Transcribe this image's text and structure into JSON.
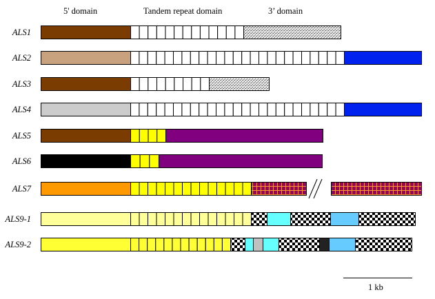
{
  "domain_headers": [
    "5' domain",
    "Tandem repeat domain",
    "3’ domain"
  ],
  "genes": [
    {
      "name": "ALS1",
      "segments": [
        {
          "kind": "solid",
          "color": "#7a3c00"
        },
        {
          "kind": "repeats",
          "count": 13,
          "color": "#ffffff"
        },
        {
          "kind": "stipple"
        }
      ]
    },
    {
      "name": "ALS2",
      "segments": [
        {
          "kind": "solid",
          "color": "#c8a27e"
        },
        {
          "kind": "repeats",
          "count": 25,
          "color": "#ffffff"
        },
        {
          "kind": "solid",
          "color": "#0022ee"
        }
      ]
    },
    {
      "name": "ALS3",
      "segments": [
        {
          "kind": "solid",
          "color": "#7a3c00"
        },
        {
          "kind": "repeats",
          "count": 9,
          "color": "#ffffff"
        },
        {
          "kind": "stipple"
        }
      ]
    },
    {
      "name": "ALS4",
      "segments": [
        {
          "kind": "solid",
          "color": "#cccccc"
        },
        {
          "kind": "repeats",
          "count": 25,
          "color": "#ffffff"
        },
        {
          "kind": "solid",
          "color": "#0022ee"
        }
      ]
    },
    {
      "name": "ALS5",
      "segments": [
        {
          "kind": "solid",
          "color": "#7a3c00"
        },
        {
          "kind": "repeats",
          "count": 4,
          "color": "#ffff00"
        },
        {
          "kind": "solid",
          "color": "#800080"
        }
      ]
    },
    {
      "name": "ALS6",
      "segments": [
        {
          "kind": "solid",
          "color": "#000000"
        },
        {
          "kind": "repeats",
          "count": 3,
          "color": "#ffff00"
        },
        {
          "kind": "solid",
          "color": "#800080"
        }
      ]
    },
    {
      "name": "ALS7",
      "segments": [
        {
          "kind": "solid",
          "color": "#ff9900"
        },
        {
          "kind": "repeats",
          "count": 14,
          "color": "#ffff00"
        },
        {
          "kind": "grid"
        },
        {
          "kind": "break"
        },
        {
          "kind": "grid"
        }
      ]
    },
    {
      "name": "ALS9-1",
      "segments": [
        {
          "kind": "solid",
          "color": "#ffff99"
        },
        {
          "kind": "repeats",
          "count": 14,
          "color": "#ffff99"
        },
        {
          "kind": "checker"
        },
        {
          "kind": "solid",
          "color": "#66ffff"
        },
        {
          "kind": "checker"
        },
        {
          "kind": "solid",
          "color": "#66ccff"
        },
        {
          "kind": "checker"
        }
      ]
    },
    {
      "name": "ALS9-2",
      "segments": [
        {
          "kind": "solid",
          "color": "#ffff33"
        },
        {
          "kind": "repeats",
          "count": 12,
          "color": "#ffff33"
        },
        {
          "kind": "checker"
        },
        {
          "kind": "solid",
          "color": "#66ffff"
        },
        {
          "kind": "solid",
          "color": "#c0c0c0"
        },
        {
          "kind": "solid",
          "color": "#66ffff"
        },
        {
          "kind": "checker"
        },
        {
          "kind": "solid",
          "color": "#222222"
        },
        {
          "kind": "solid",
          "color": "#66ccff"
        },
        {
          "kind": "checker"
        }
      ]
    }
  ],
  "scale_bar_label": "1 kb"
}
